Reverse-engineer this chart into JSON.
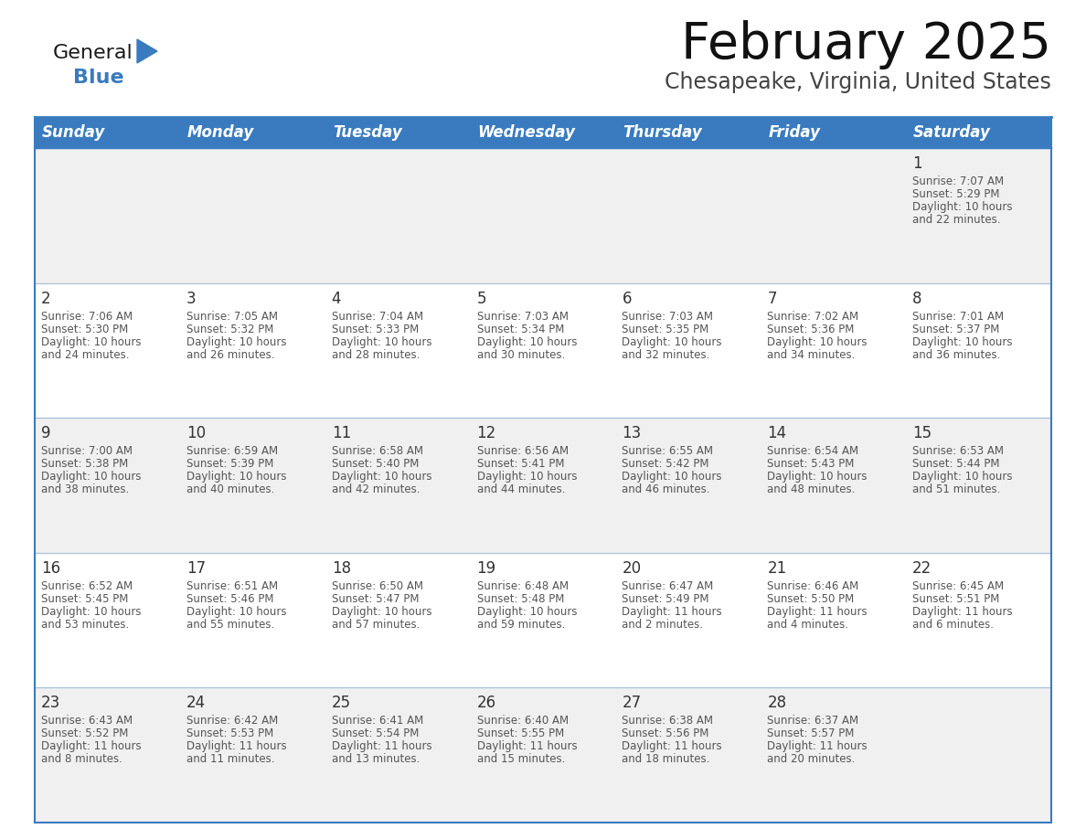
{
  "title": "February 2025",
  "subtitle": "Chesapeake, Virginia, United States",
  "header_bg": "#3a7bbf",
  "header_text_color": "#ffffff",
  "cell_bg_row0": "#f0f0f0",
  "cell_bg_row1": "#ffffff",
  "cell_bg_row2": "#f0f0f0",
  "cell_bg_row3": "#ffffff",
  "cell_bg_row4": "#f0f0f0",
  "border_color_dark": "#3a7bbf",
  "border_color_light": "#b0c4d8",
  "text_color_dark": "#333333",
  "text_color_info": "#555555",
  "day_headers": [
    "Sunday",
    "Monday",
    "Tuesday",
    "Wednesday",
    "Thursday",
    "Friday",
    "Saturday"
  ],
  "days": [
    {
      "day": 1,
      "col": 6,
      "row": 0,
      "sunrise": "7:07 AM",
      "sunset": "5:29 PM",
      "daylight": "10 hours",
      "daylight2": "and 22 minutes."
    },
    {
      "day": 2,
      "col": 0,
      "row": 1,
      "sunrise": "7:06 AM",
      "sunset": "5:30 PM",
      "daylight": "10 hours",
      "daylight2": "and 24 minutes."
    },
    {
      "day": 3,
      "col": 1,
      "row": 1,
      "sunrise": "7:05 AM",
      "sunset": "5:32 PM",
      "daylight": "10 hours",
      "daylight2": "and 26 minutes."
    },
    {
      "day": 4,
      "col": 2,
      "row": 1,
      "sunrise": "7:04 AM",
      "sunset": "5:33 PM",
      "daylight": "10 hours",
      "daylight2": "and 28 minutes."
    },
    {
      "day": 5,
      "col": 3,
      "row": 1,
      "sunrise": "7:03 AM",
      "sunset": "5:34 PM",
      "daylight": "10 hours",
      "daylight2": "and 30 minutes."
    },
    {
      "day": 6,
      "col": 4,
      "row": 1,
      "sunrise": "7:03 AM",
      "sunset": "5:35 PM",
      "daylight": "10 hours",
      "daylight2": "and 32 minutes."
    },
    {
      "day": 7,
      "col": 5,
      "row": 1,
      "sunrise": "7:02 AM",
      "sunset": "5:36 PM",
      "daylight": "10 hours",
      "daylight2": "and 34 minutes."
    },
    {
      "day": 8,
      "col": 6,
      "row": 1,
      "sunrise": "7:01 AM",
      "sunset": "5:37 PM",
      "daylight": "10 hours",
      "daylight2": "and 36 minutes."
    },
    {
      "day": 9,
      "col": 0,
      "row": 2,
      "sunrise": "7:00 AM",
      "sunset": "5:38 PM",
      "daylight": "10 hours",
      "daylight2": "and 38 minutes."
    },
    {
      "day": 10,
      "col": 1,
      "row": 2,
      "sunrise": "6:59 AM",
      "sunset": "5:39 PM",
      "daylight": "10 hours",
      "daylight2": "and 40 minutes."
    },
    {
      "day": 11,
      "col": 2,
      "row": 2,
      "sunrise": "6:58 AM",
      "sunset": "5:40 PM",
      "daylight": "10 hours",
      "daylight2": "and 42 minutes."
    },
    {
      "day": 12,
      "col": 3,
      "row": 2,
      "sunrise": "6:56 AM",
      "sunset": "5:41 PM",
      "daylight": "10 hours",
      "daylight2": "and 44 minutes."
    },
    {
      "day": 13,
      "col": 4,
      "row": 2,
      "sunrise": "6:55 AM",
      "sunset": "5:42 PM",
      "daylight": "10 hours",
      "daylight2": "and 46 minutes."
    },
    {
      "day": 14,
      "col": 5,
      "row": 2,
      "sunrise": "6:54 AM",
      "sunset": "5:43 PM",
      "daylight": "10 hours",
      "daylight2": "and 48 minutes."
    },
    {
      "day": 15,
      "col": 6,
      "row": 2,
      "sunrise": "6:53 AM",
      "sunset": "5:44 PM",
      "daylight": "10 hours",
      "daylight2": "and 51 minutes."
    },
    {
      "day": 16,
      "col": 0,
      "row": 3,
      "sunrise": "6:52 AM",
      "sunset": "5:45 PM",
      "daylight": "10 hours",
      "daylight2": "and 53 minutes."
    },
    {
      "day": 17,
      "col": 1,
      "row": 3,
      "sunrise": "6:51 AM",
      "sunset": "5:46 PM",
      "daylight": "10 hours",
      "daylight2": "and 55 minutes."
    },
    {
      "day": 18,
      "col": 2,
      "row": 3,
      "sunrise": "6:50 AM",
      "sunset": "5:47 PM",
      "daylight": "10 hours",
      "daylight2": "and 57 minutes."
    },
    {
      "day": 19,
      "col": 3,
      "row": 3,
      "sunrise": "6:48 AM",
      "sunset": "5:48 PM",
      "daylight": "10 hours",
      "daylight2": "and 59 minutes."
    },
    {
      "day": 20,
      "col": 4,
      "row": 3,
      "sunrise": "6:47 AM",
      "sunset": "5:49 PM",
      "daylight": "11 hours",
      "daylight2": "and 2 minutes."
    },
    {
      "day": 21,
      "col": 5,
      "row": 3,
      "sunrise": "6:46 AM",
      "sunset": "5:50 PM",
      "daylight": "11 hours",
      "daylight2": "and 4 minutes."
    },
    {
      "day": 22,
      "col": 6,
      "row": 3,
      "sunrise": "6:45 AM",
      "sunset": "5:51 PM",
      "daylight": "11 hours",
      "daylight2": "and 6 minutes."
    },
    {
      "day": 23,
      "col": 0,
      "row": 4,
      "sunrise": "6:43 AM",
      "sunset": "5:52 PM",
      "daylight": "11 hours",
      "daylight2": "and 8 minutes."
    },
    {
      "day": 24,
      "col": 1,
      "row": 4,
      "sunrise": "6:42 AM",
      "sunset": "5:53 PM",
      "daylight": "11 hours",
      "daylight2": "and 11 minutes."
    },
    {
      "day": 25,
      "col": 2,
      "row": 4,
      "sunrise": "6:41 AM",
      "sunset": "5:54 PM",
      "daylight": "11 hours",
      "daylight2": "and 13 minutes."
    },
    {
      "day": 26,
      "col": 3,
      "row": 4,
      "sunrise": "6:40 AM",
      "sunset": "5:55 PM",
      "daylight": "11 hours",
      "daylight2": "and 15 minutes."
    },
    {
      "day": 27,
      "col": 4,
      "row": 4,
      "sunrise": "6:38 AM",
      "sunset": "5:56 PM",
      "daylight": "11 hours",
      "daylight2": "and 18 minutes."
    },
    {
      "day": 28,
      "col": 5,
      "row": 4,
      "sunrise": "6:37 AM",
      "sunset": "5:57 PM",
      "daylight": "11 hours",
      "daylight2": "and 20 minutes."
    }
  ],
  "logo_text_general": "General",
  "logo_text_blue": "Blue",
  "logo_color_general": "#1a1a1a",
  "logo_color_blue": "#3a7bbf",
  "logo_triangle_color": "#3a7bbf"
}
